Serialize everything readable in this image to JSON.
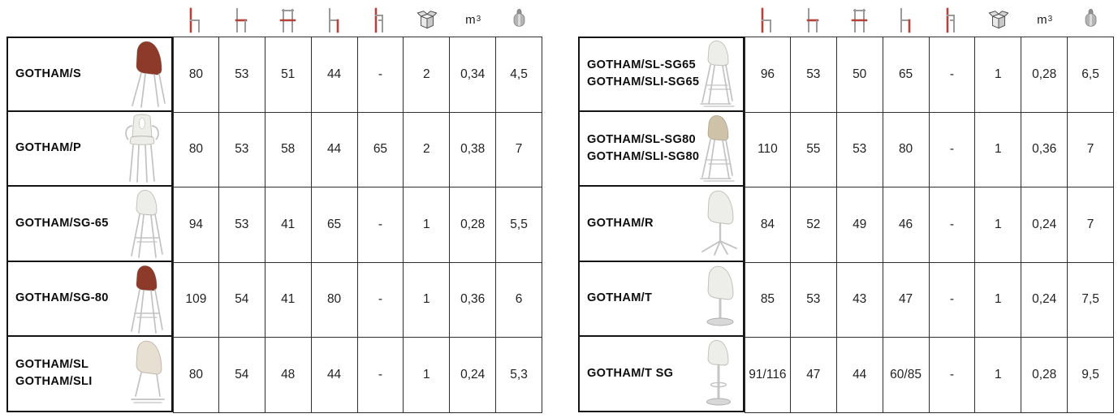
{
  "title": "GOTHAM seating specification tables",
  "colors": {
    "accent_red": "#b5423a",
    "icon_gray": "#9b9b9b",
    "thick_border": "#151515",
    "thin_border": "#2e2e2e",
    "shell_red": "#8e3a2b",
    "shell_white": "#ededea",
    "shell_cream": "#e7dfd2",
    "shell_tan": "#cec2a9",
    "frame_gray": "#c2c2c2"
  },
  "columns": [
    {
      "id": "height",
      "icon": "chair-total-height-icon"
    },
    {
      "id": "depth",
      "icon": "chair-depth-icon"
    },
    {
      "id": "width",
      "icon": "chair-width-icon"
    },
    {
      "id": "seat_height",
      "icon": "chair-seat-height-icon"
    },
    {
      "id": "armrest_height",
      "icon": "chair-armrest-height-icon"
    },
    {
      "id": "pieces_per_box",
      "icon": "packaging-box-icon"
    },
    {
      "id": "volume",
      "icon": "volume-unit-label",
      "label": "m",
      "sup": "3"
    },
    {
      "id": "weight",
      "icon": "weight-kg-icon"
    }
  ],
  "tables": [
    {
      "id": "left",
      "rows": [
        {
          "names": [
            "GOTHAM/S"
          ],
          "image": {
            "type": "side-chair",
            "color": "#8e3a2b"
          },
          "values": [
            "80",
            "53",
            "51",
            "44",
            "-",
            "2",
            "0,34",
            "4,5"
          ]
        },
        {
          "names": [
            "GOTHAM/P"
          ],
          "image": {
            "type": "arm-chair",
            "color": "#ededea"
          },
          "values": [
            "80",
            "53",
            "58",
            "44",
            "65",
            "2",
            "0,38",
            "7"
          ]
        },
        {
          "names": [
            "GOTHAM/SG-65"
          ],
          "image": {
            "type": "stool-4leg",
            "color": "#ededea"
          },
          "values": [
            "94",
            "53",
            "41",
            "65",
            "-",
            "1",
            "0,28",
            "5,5"
          ]
        },
        {
          "names": [
            "GOTHAM/SG-80"
          ],
          "image": {
            "type": "stool-4leg",
            "color": "#8e3a2b"
          },
          "values": [
            "109",
            "54",
            "41",
            "80",
            "-",
            "1",
            "0,36",
            "6"
          ]
        },
        {
          "names": [
            "GOTHAM/SL",
            "GOTHAM/SLI"
          ],
          "image": {
            "type": "sled-chair",
            "color": "#e7dfd2"
          },
          "values": [
            "80",
            "54",
            "48",
            "44",
            "-",
            "1",
            "0,24",
            "5,3"
          ]
        }
      ]
    },
    {
      "id": "right",
      "rows": [
        {
          "names": [
            "GOTHAM/SL-SG65",
            "GOTHAM/SLI-SG65"
          ],
          "image": {
            "type": "sled-stool",
            "color": "#ededea"
          },
          "values": [
            "96",
            "53",
            "50",
            "65",
            "-",
            "1",
            "0,28",
            "6,5"
          ]
        },
        {
          "names": [
            "GOTHAM/SL-SG80",
            "GOTHAM/SLI-SG80"
          ],
          "image": {
            "type": "sled-stool",
            "color": "#cec2a9"
          },
          "values": [
            "110",
            "55",
            "53",
            "80",
            "-",
            "1",
            "0,36",
            "7"
          ]
        },
        {
          "names": [
            "GOTHAM/R"
          ],
          "image": {
            "type": "swivel-chair",
            "color": "#ededea"
          },
          "values": [
            "84",
            "52",
            "49",
            "46",
            "-",
            "1",
            "0,24",
            "7"
          ]
        },
        {
          "names": [
            "GOTHAM/T"
          ],
          "image": {
            "type": "trumpet-chair",
            "color": "#ededea"
          },
          "values": [
            "85",
            "53",
            "43",
            "47",
            "-",
            "1",
            "0,24",
            "7,5"
          ]
        },
        {
          "names": [
            "GOTHAM/T SG"
          ],
          "image": {
            "type": "trumpet-stool",
            "color": "#ededea"
          },
          "values": [
            "91/116",
            "47",
            "44",
            "60/85",
            "-",
            "1",
            "0,28",
            "9,5"
          ]
        }
      ]
    }
  ]
}
